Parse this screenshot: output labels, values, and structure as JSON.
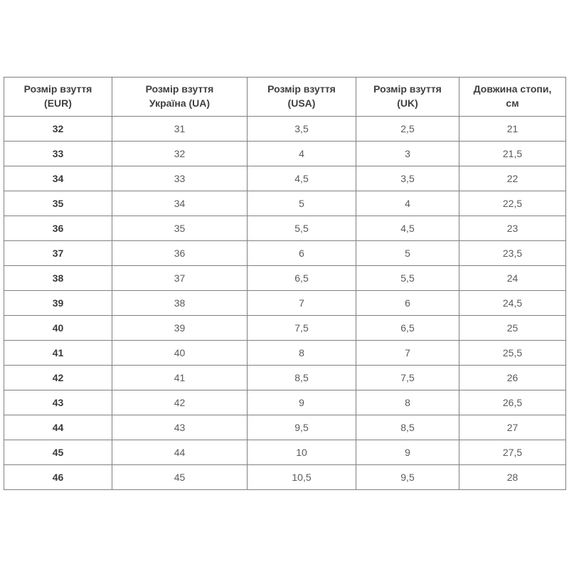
{
  "colors": {
    "border": "#808080",
    "header_text": "#3f3f3f",
    "cell_text": "#5a5a5a",
    "bold_cell_text": "#3a3a3a",
    "page_background": "#ffffff"
  },
  "chart_data": {
    "type": "table",
    "title": "",
    "columns": [
      {
        "label": "Розмір взуття (EUR)",
        "lines": [
          "Розмір взуття",
          "(EUR)"
        ]
      },
      {
        "label": "Розмір взуття Україна (UA)",
        "lines": [
          "Розмір взуття",
          "Україна (UA)"
        ]
      },
      {
        "label": "Розмір взуття (USA)",
        "lines": [
          "Розмір взуття",
          "(USA)"
        ]
      },
      {
        "label": "Розмір взуття (UK)",
        "lines": [
          "Розмір взуття",
          "(UK)"
        ]
      },
      {
        "label": "Довжина стопи, см",
        "lines": [
          "Довжина стопи,",
          "см"
        ]
      }
    ],
    "rows": [
      [
        "32",
        "31",
        "3,5",
        "2,5",
        "21"
      ],
      [
        "33",
        "32",
        "4",
        "3",
        "21,5"
      ],
      [
        "34",
        "33",
        "4,5",
        "3,5",
        "22"
      ],
      [
        "35",
        "34",
        "5",
        "4",
        "22,5"
      ],
      [
        "36",
        "35",
        "5,5",
        "4,5",
        "23"
      ],
      [
        "37",
        "36",
        "6",
        "5",
        "23,5"
      ],
      [
        "38",
        "37",
        "6,5",
        "5,5",
        "24"
      ],
      [
        "39",
        "38",
        "7",
        "6",
        "24,5"
      ],
      [
        "40",
        "39",
        "7,5",
        "6,5",
        "25"
      ],
      [
        "41",
        "40",
        "8",
        "7",
        "25,5"
      ],
      [
        "42",
        "41",
        "8,5",
        "7,5",
        "26"
      ],
      [
        "43",
        "42",
        "9",
        "8",
        "26,5"
      ],
      [
        "44",
        "43",
        "9,5",
        "8,5",
        "27"
      ],
      [
        "45",
        "44",
        "10",
        "9",
        "27,5"
      ],
      [
        "46",
        "45",
        "10,5",
        "9,5",
        "28"
      ]
    ]
  }
}
